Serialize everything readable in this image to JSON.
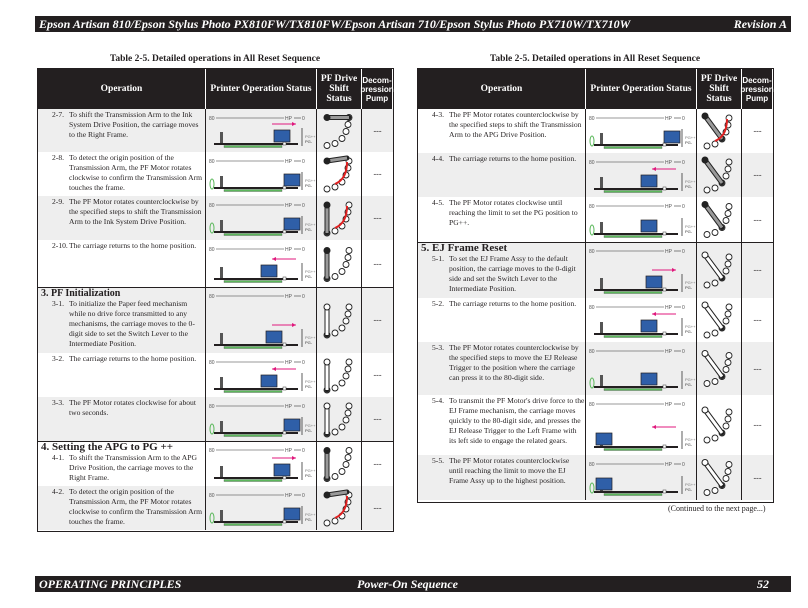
{
  "header": {
    "title": "Epson Artisan 810/Epson Stylus Photo PX810FW/TX810FW/Epson Artisan 710/Epson Stylus Photo PX710W/TX710W",
    "revision": "Revision A"
  },
  "footer": {
    "section": "OPERATING PRINCIPLES",
    "topic": "Power-On Sequence",
    "page": "52"
  },
  "table_caption": "Table 2-5.  Detailed operations in All Reset Sequence",
  "columns": [
    "Operation",
    "Printer Operation Status",
    "PF Drive Shift Status",
    "Decom-pression Pump"
  ],
  "diagram_labels": {
    "left": "80",
    "hp": "HP",
    "right": "0",
    "pg_plus": "PG++",
    "pg": "PG-"
  },
  "pump_value": "---",
  "left_table": [
    {
      "num": "2-7.",
      "text": "To shift the Transmission Arm to the Ink System Drive Position, the carriage moves to the Right Frame."
    },
    {
      "num": "2-8.",
      "text": "To detect the origin position of the Transmission Arm, the PF Motor rotates clockwise to confirm the Transmission Arm touches the frame."
    },
    {
      "num": "2-9.",
      "text": "The PF Motor rotates counterclockwise by the specified steps to shift the Transmission Arm to the Ink System Drive Position."
    },
    {
      "num": "2-10.",
      "text": "The carriage returns to the home position."
    },
    {
      "section": "3.  PF Initialization",
      "num": "3-1.",
      "text": "To initialize the Paper feed mechanism while no drive force transmitted to any mechanisms, the carriage moves to the 0-digit side to set the Switch Lever to the Intermediate Position."
    },
    {
      "num": "3-2.",
      "text": "The carriage returns to the home position."
    },
    {
      "num": "3-3.",
      "text": "The PF Motor rotates clockwise for about two seconds."
    },
    {
      "section": "4.  Setting the APG to PG ++",
      "num": "4-1.",
      "text": "To shift the Transmission Arm to the APG Drive Position, the carriage moves to the Right Frame."
    },
    {
      "num": "4-2.",
      "text": "To detect the origin position of the Transmission Arm, the PF Motor rotates clockwise to confirm the Transmission Arm touches the frame."
    }
  ],
  "right_table": [
    {
      "num": "4-3.",
      "text": "The PF Motor rotates counterclockwise by the specified steps to shift the Transmission Arm to the APG Drive Position."
    },
    {
      "num": "4-4.",
      "text": "The carriage returns to the home position."
    },
    {
      "num": "4-5.",
      "text": "The PF Motor rotates clockwise until reaching the limit to set the PG position to PG++."
    },
    {
      "section": "5.  EJ Frame Reset",
      "num": "5-1.",
      "text": "To set the EJ Frame Assy to the default position, the carriage moves to the 0-digit side and set the Switch Lever to the Intermediate Position."
    },
    {
      "num": "5-2.",
      "text": "The carriage returns to the home position."
    },
    {
      "num": "5-3.",
      "text": "The PF Motor rotates counterclockwise by the specified steps to move the EJ Release Trigger to the position where the carriage can press it to the 80-digit side."
    },
    {
      "num": "5-4.",
      "text": "To transmit the PF Motor's drive force to the EJ Frame mechanism, the carriage moves quickly to the 80-digit side, and presses the EJ Release Trigger to the Left Frame with its left side to engage the related gears."
    },
    {
      "num": "5-5.",
      "text": "The PF Motor rotates counterclockwise until reaching the limit to move the EJ Frame Assy up to the highest position."
    }
  ],
  "continued": "(Continued to the next page...)",
  "colors": {
    "dark": "#231f20",
    "shade": "#eeeeee",
    "carriage": "#2f5fa8",
    "paper": "#5cb85c",
    "arrow": "#e0197d",
    "red": "#e02020"
  }
}
